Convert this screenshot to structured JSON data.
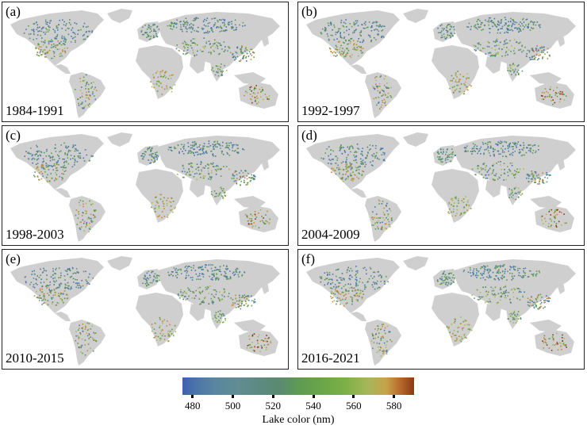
{
  "panels": [
    {
      "letter": "(a)",
      "period": "1984-1991"
    },
    {
      "letter": "(b)",
      "period": "1992-1997"
    },
    {
      "letter": "(c)",
      "period": "1998-2003"
    },
    {
      "letter": "(d)",
      "period": "2004-2009"
    },
    {
      "letter": "(e)",
      "period": "2010-2015"
    },
    {
      "letter": "(f)",
      "period": "2016-2021"
    }
  ],
  "legend": {
    "title": "Lake color (nm)",
    "ticks": [
      "480",
      "500",
      "520",
      "540",
      "560",
      "580"
    ],
    "range_nm": [
      475,
      590
    ]
  },
  "colors": {
    "land": "#cfcfcf",
    "blue": "#4a78a8",
    "teal": "#5e8f86",
    "green": "#5f9e45",
    "yellowgreen": "#a8b85a",
    "orange": "#c9883a",
    "brown": "#8b3a1a"
  }
}
